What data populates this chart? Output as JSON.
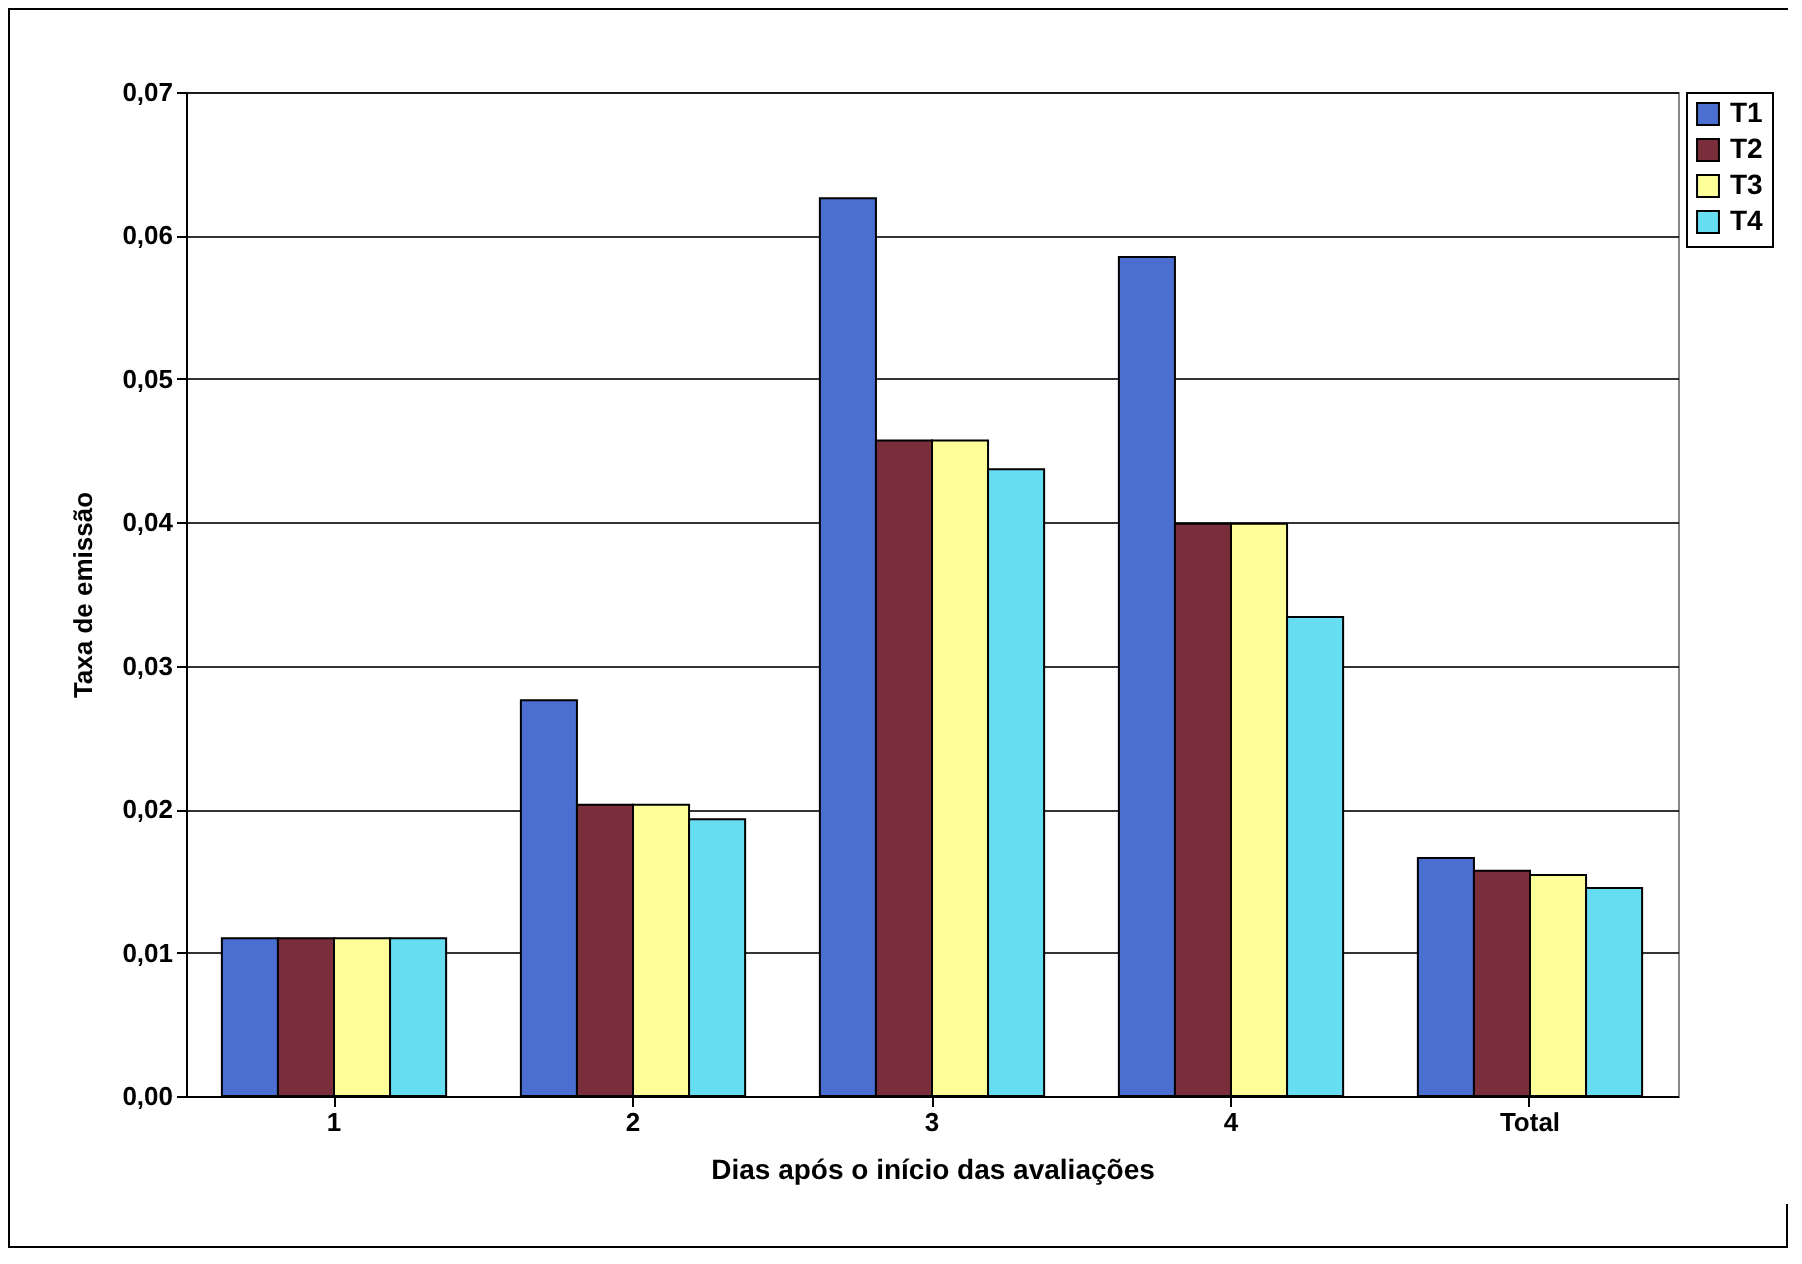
{
  "chart_data": {
    "type": "bar",
    "xlabel": "Dias após o início das avaliações",
    "ylabel": "Taxa de emissão",
    "categories": [
      "1",
      "2",
      "3",
      "4",
      "Total"
    ],
    "series": [
      {
        "name": "T1",
        "color": "#4a6fd0",
        "values": [
          0.011,
          0.0276,
          0.0626,
          0.0585,
          0.0166
        ]
      },
      {
        "name": "T2",
        "color": "#7a2d3a",
        "values": [
          0.011,
          0.0203,
          0.0457,
          0.0399,
          0.0157
        ]
      },
      {
        "name": "T3",
        "color": "#ffff99",
        "values": [
          0.011,
          0.0203,
          0.0457,
          0.0399,
          0.0154
        ]
      },
      {
        "name": "T4",
        "color": "#66ddf0",
        "values": [
          0.011,
          0.0193,
          0.0437,
          0.0334,
          0.0145
        ]
      }
    ],
    "ylim": [
      0,
      0.07
    ],
    "yticks": [
      {
        "value": 0,
        "label": "0,00"
      },
      {
        "value": 0.01,
        "label": "0,01"
      },
      {
        "value": 0.02,
        "label": "0,02"
      },
      {
        "value": 0.03,
        "label": "0,03"
      },
      {
        "value": 0.04,
        "label": "0,04"
      },
      {
        "value": 0.05,
        "label": "0,05"
      },
      {
        "value": 0.06,
        "label": "0,06"
      },
      {
        "value": 0.07,
        "label": "0,07"
      }
    ],
    "grid": "y",
    "legend": "right"
  }
}
